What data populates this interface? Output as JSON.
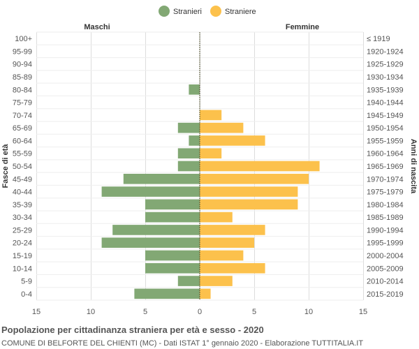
{
  "chart_data": {
    "type": "bar",
    "orientation": "horizontal-pyramid",
    "title": "Popolazione per cittadinanza straniera per età e sesso - 2020",
    "subtitle": "COMUNE DI BELFORTE DEL CHIENTI (MC) - Dati ISTAT 1° gennaio 2020 - Elaborazione TUTTITALIA.IT",
    "ylabel": "Fasce di età",
    "ylabel_right": "Anni di nascita",
    "left_side_label": "Maschi",
    "right_side_label": "Femmine",
    "xlim": [
      -15,
      15
    ],
    "x_ticks": [
      -15,
      -10,
      -5,
      0,
      5,
      10,
      15
    ],
    "x_tick_labels": [
      "15",
      "10",
      "5",
      "0",
      "5",
      "10",
      "15"
    ],
    "grid": true,
    "legend_position": "top-center",
    "categories": [
      "100+",
      "95-99",
      "90-94",
      "85-89",
      "80-84",
      "75-79",
      "70-74",
      "65-69",
      "60-64",
      "55-59",
      "50-54",
      "45-49",
      "40-44",
      "35-39",
      "30-34",
      "25-29",
      "20-24",
      "15-19",
      "10-14",
      "5-9",
      "0-4"
    ],
    "birth_years": [
      "≤ 1919",
      "1920-1924",
      "1925-1929",
      "1930-1934",
      "1935-1939",
      "1940-1944",
      "1945-1949",
      "1950-1954",
      "1955-1959",
      "1960-1964",
      "1965-1969",
      "1970-1974",
      "1975-1979",
      "1980-1984",
      "1985-1989",
      "1990-1994",
      "1995-1999",
      "2000-2004",
      "2005-2009",
      "2010-2014",
      "2015-2019"
    ],
    "series": [
      {
        "name": "Stranieri",
        "color": "#82a874",
        "side": "left",
        "values": [
          0,
          0,
          0,
          0,
          1,
          0,
          0,
          2,
          1,
          2,
          2,
          7,
          9,
          5,
          5,
          8,
          9,
          5,
          5,
          2,
          6
        ]
      },
      {
        "name": "Straniere",
        "color": "#fcc14c",
        "side": "right",
        "values": [
          0,
          0,
          0,
          0,
          0,
          0,
          2,
          4,
          6,
          2,
          11,
          10,
          9,
          9,
          3,
          6,
          5,
          4,
          6,
          3,
          1
        ]
      }
    ]
  }
}
